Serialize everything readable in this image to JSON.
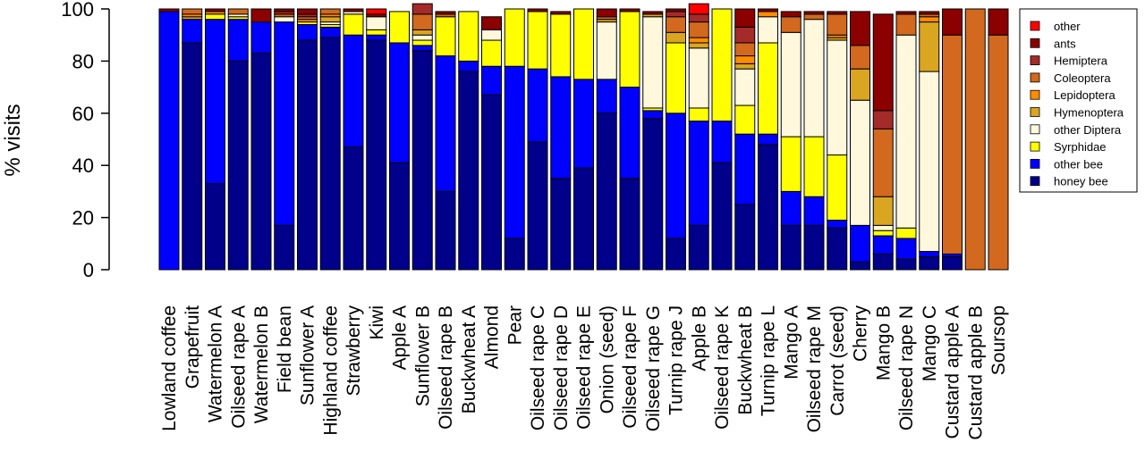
{
  "chart_data": {
    "type": "bar",
    "stacked": true,
    "ylabel": "% visits",
    "ylim": [
      0,
      100
    ],
    "yticks": [
      0,
      20,
      40,
      60,
      80,
      100
    ],
    "grid": false,
    "legend_position": "top-right",
    "categories": [
      "Lowland coffee",
      "Grapefruit",
      "Watermelon A",
      "Oilseed rape A",
      "Watermelon B",
      "Field bean",
      "Sunflower A",
      "Highland coffee",
      "Strawberry",
      "Kiwi",
      "Apple A",
      "Sunflower B",
      "Oilseed rape B",
      "Buckwheat A",
      "Almond",
      "Pear",
      "Oilseed rape C",
      "Oilseed rape D",
      "Oilseed rape E",
      "Onion (seed)",
      "Oilseed rape F",
      "Oilseed rape G",
      "Turnip rape J",
      "Apple B",
      "Oilseed rape K",
      "Buckwheat B",
      "Turnip rape L",
      "Mango A",
      "Oilseed rape M",
      "Carrot (seed)",
      "Cherry",
      "Mango B",
      "Oilseed rape N",
      "Mango C",
      "Custard apple A",
      "Custard apple B",
      "Soursop"
    ],
    "series": [
      {
        "name": "honey bee",
        "color": "#00008B",
        "values": [
          0,
          87,
          33,
          80,
          83,
          17,
          88,
          89,
          47,
          88,
          41,
          84,
          30,
          76,
          67,
          12,
          49,
          35,
          39,
          60,
          35,
          58,
          12,
          17,
          41,
          25,
          48,
          17,
          17,
          16,
          3,
          6,
          4,
          5,
          5,
          0,
          0
        ]
      },
      {
        "name": "other bee",
        "color": "#0000FF",
        "values": [
          99,
          9,
          63,
          16,
          12,
          78,
          6,
          4,
          43,
          2,
          46,
          2,
          52,
          4,
          11,
          66,
          28,
          39,
          34,
          13,
          35,
          3,
          48,
          40,
          16,
          27,
          4,
          13,
          11,
          3,
          14,
          7,
          8,
          2,
          1,
          0,
          0
        ]
      },
      {
        "name": "Syrphidae",
        "color": "#FFFF00",
        "values": [
          0,
          0,
          2,
          1,
          0,
          0,
          1,
          1,
          8,
          2,
          12,
          2,
          15,
          19,
          10,
          22,
          22,
          24,
          27,
          0,
          29,
          1,
          27,
          5,
          43,
          11,
          35,
          21,
          23,
          25,
          0,
          2,
          4,
          0,
          0,
          0,
          0
        ]
      },
      {
        "name": "other Diptera",
        "color": "#FFF8DC",
        "values": [
          0,
          0,
          0,
          1,
          0,
          2,
          0,
          1,
          1,
          5,
          0,
          2,
          0,
          0,
          4,
          0,
          0,
          0,
          0,
          22,
          0,
          35,
          0,
          23,
          0,
          14,
          10,
          40,
          45,
          44,
          48,
          2,
          74,
          69,
          0,
          0,
          0
        ]
      },
      {
        "name": "Hymenoptera",
        "color": "#DAA520",
        "values": [
          0,
          1,
          0,
          0,
          0,
          0,
          0,
          2,
          0,
          0,
          0,
          2,
          0,
          0,
          0,
          0,
          0,
          0,
          0,
          1,
          0,
          1,
          4,
          2,
          0,
          2,
          0,
          0,
          0,
          1,
          12,
          11,
          0,
          19,
          0,
          0,
          0
        ]
      },
      {
        "name": "Lepidoptera",
        "color": "#FF8C00",
        "values": [
          0,
          1,
          1,
          0,
          0,
          0,
          1,
          1,
          0,
          0,
          0,
          0,
          0,
          0,
          0,
          0,
          0,
          0,
          0,
          0,
          0,
          0,
          0,
          2,
          0,
          3,
          2,
          0,
          0,
          1,
          0,
          0,
          0,
          2,
          0,
          0,
          0
        ]
      },
      {
        "name": "Coleoptera",
        "color": "#D2691E",
        "values": [
          0,
          2,
          0,
          2,
          0,
          1,
          1,
          2,
          0,
          0,
          0,
          6,
          1,
          0,
          0,
          0,
          0,
          0,
          0,
          1,
          0,
          0,
          6,
          6,
          0,
          5,
          0,
          6,
          2,
          8,
          9,
          26,
          8,
          1,
          84,
          100,
          90
        ]
      },
      {
        "name": "Hemiptera",
        "color": "#A52A2A",
        "values": [
          0,
          0,
          0,
          0,
          0,
          1,
          1,
          0,
          0,
          0,
          0,
          4,
          0,
          0,
          0,
          0,
          0,
          0,
          0,
          0,
          0,
          0,
          2,
          3,
          0,
          6,
          0,
          0,
          0,
          0,
          0,
          7,
          0,
          0,
          0,
          0,
          0
        ]
      },
      {
        "name": "ants",
        "color": "#8B0000",
        "values": [
          1,
          0,
          1,
          0,
          5,
          1,
          2,
          0,
          1,
          1,
          0,
          0,
          1,
          0,
          5,
          0,
          1,
          1,
          0,
          3,
          1,
          1,
          1,
          0,
          0,
          7,
          1,
          2,
          1,
          1,
          13,
          37,
          1,
          1,
          10,
          0,
          10
        ]
      },
      {
        "name": "other",
        "color": "#FF0000",
        "values": [
          0,
          0,
          0,
          0,
          0,
          0,
          0,
          0,
          0,
          2,
          0,
          0,
          0,
          0,
          0,
          0,
          0,
          0,
          0,
          0,
          0,
          0,
          0,
          4,
          0,
          0,
          0,
          0,
          0,
          0,
          0,
          0,
          0,
          0,
          0,
          0,
          0
        ]
      }
    ]
  }
}
